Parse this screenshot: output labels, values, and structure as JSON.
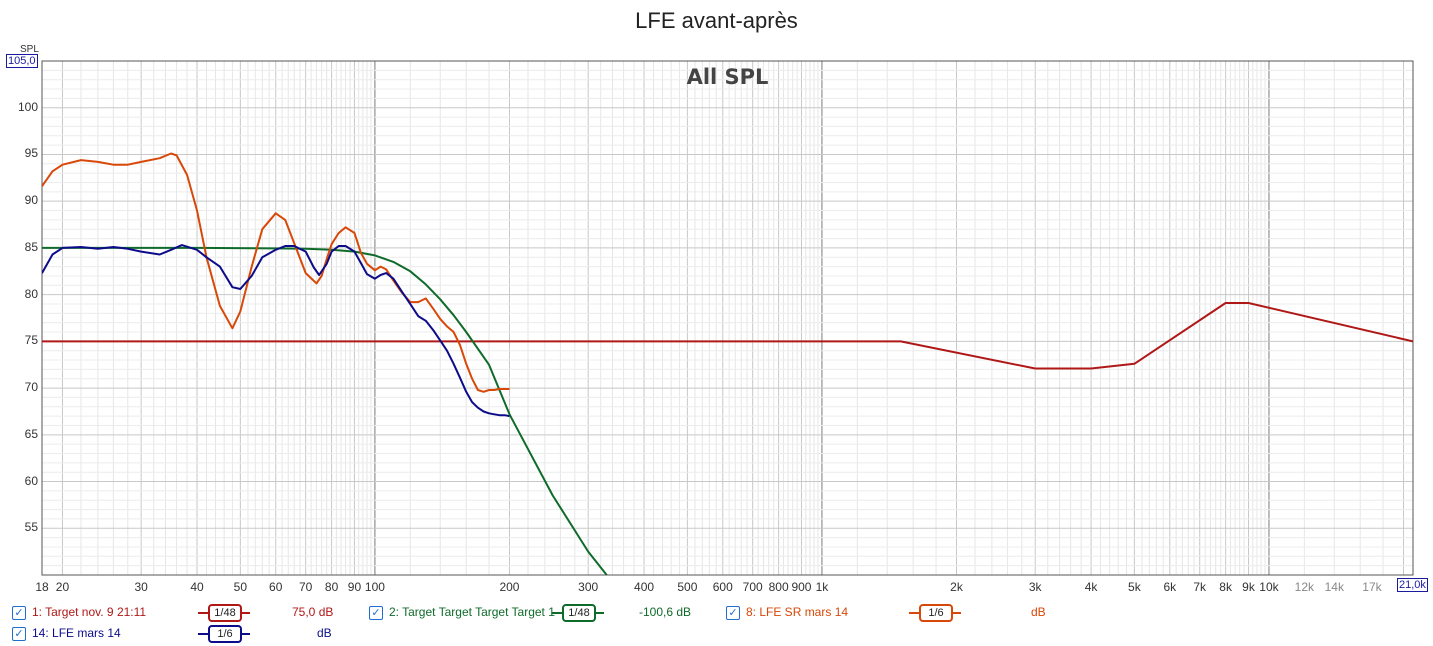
{
  "title": "LFE avant-après",
  "chart_data": {
    "type": "line",
    "title": "LFE avant-après",
    "subtitle": "All SPL",
    "ylabel": "SPL",
    "xscale": "log",
    "xlim": [
      18,
      21000
    ],
    "ylim": [
      50,
      105
    ],
    "grid": true,
    "y_ticks": [
      "100",
      "95",
      "90",
      "85",
      "80",
      "75",
      "70",
      "65",
      "60",
      "55"
    ],
    "y_top_label": "105,0",
    "x_ticks": [
      {
        "v": 18,
        "t": "18"
      },
      {
        "v": 20,
        "t": "20"
      },
      {
        "v": 30,
        "t": "30"
      },
      {
        "v": 40,
        "t": "40"
      },
      {
        "v": 50,
        "t": "50"
      },
      {
        "v": 60,
        "t": "60"
      },
      {
        "v": 70,
        "t": "70"
      },
      {
        "v": 80,
        "t": "80"
      },
      {
        "v": 90,
        "t": "90"
      },
      {
        "v": 100,
        "t": "100"
      },
      {
        "v": 200,
        "t": "200"
      },
      {
        "v": 300,
        "t": "300"
      },
      {
        "v": 400,
        "t": "400"
      },
      {
        "v": 500,
        "t": "500"
      },
      {
        "v": 600,
        "t": "600"
      },
      {
        "v": 700,
        "t": "700"
      },
      {
        "v": 800,
        "t": "800"
      },
      {
        "v": 900,
        "t": "900"
      },
      {
        "v": 1000,
        "t": "1k"
      },
      {
        "v": 2000,
        "t": "2k"
      },
      {
        "v": 3000,
        "t": "3k"
      },
      {
        "v": 4000,
        "t": "4k"
      },
      {
        "v": 5000,
        "t": "5k"
      },
      {
        "v": 6000,
        "t": "6k"
      },
      {
        "v": 7000,
        "t": "7k"
      },
      {
        "v": 8000,
        "t": "8k"
      },
      {
        "v": 9000,
        "t": "9k"
      },
      {
        "v": 10000,
        "t": "10k"
      },
      {
        "v": 12000,
        "t": "12k",
        "minor": true
      },
      {
        "v": 14000,
        "t": "14k",
        "minor": true
      },
      {
        "v": 17000,
        "t": "17k",
        "minor": true
      }
    ],
    "x_right_label": "21,0k",
    "series": [
      {
        "name": "1: Target nov. 9 21:11",
        "color": "#b01818",
        "smoothing": "1/48",
        "value": "75,0 dB",
        "x": [
          18,
          1500,
          3000,
          4000,
          5000,
          8000,
          9000,
          21000
        ],
        "y": [
          75,
          75,
          72.1,
          72.1,
          72.6,
          79.1,
          79.1,
          75
        ]
      },
      {
        "name": "2: Target Target Target Target 1",
        "color": "#0f6b2a",
        "smoothing": "1/48",
        "value": "-100,6 dB",
        "x": [
          18,
          40,
          60,
          70,
          80,
          90,
          100,
          110,
          120,
          130,
          140,
          150,
          160,
          180,
          200,
          250,
          300,
          330
        ],
        "y": [
          85,
          85,
          84.95,
          84.9,
          84.8,
          84.6,
          84.2,
          83.5,
          82.5,
          81.1,
          79.5,
          77.8,
          76,
          72.5,
          67.2,
          58.5,
          52.5,
          50
        ]
      },
      {
        "name": "8: LFE SR mars 14",
        "color": "#d84808",
        "smoothing": "1/6",
        "value": "dB",
        "x": [
          18,
          19,
          20,
          22,
          24,
          26,
          28,
          30,
          33,
          35,
          36,
          38,
          40,
          42,
          45,
          48,
          50,
          53,
          56,
          60,
          63,
          66,
          70,
          74,
          76,
          78,
          80,
          83,
          86,
          90,
          93,
          96,
          100,
          103,
          106,
          110,
          115,
          120,
          125,
          130,
          135,
          140,
          145,
          150,
          155,
          160,
          165,
          170,
          175,
          180,
          185,
          190,
          195,
          200
        ],
        "y": [
          91.6,
          93.2,
          93.9,
          94.4,
          94.2,
          93.9,
          93.9,
          94.2,
          94.6,
          95.1,
          94.9,
          92.8,
          89,
          84,
          78.8,
          76.4,
          78.2,
          83,
          87,
          88.7,
          88,
          85.5,
          82.3,
          81.2,
          82,
          83.8,
          85.4,
          86.6,
          87.2,
          86.6,
          84.5,
          83.3,
          82.6,
          83,
          82.7,
          81.5,
          80.2,
          79.2,
          79.2,
          79.6,
          78.5,
          77.4,
          76.6,
          76,
          74.6,
          72.6,
          71,
          69.8,
          69.6,
          69.8,
          69.8,
          69.9,
          69.9,
          69.9
        ]
      },
      {
        "name": "14: LFE mars 14",
        "color": "#0c0c8a",
        "smoothing": "1/6",
        "value": "dB",
        "x": [
          18,
          19,
          20,
          22,
          24,
          26,
          28,
          30,
          33,
          35,
          37,
          40,
          42,
          45,
          48,
          50,
          53,
          56,
          60,
          63,
          66,
          70,
          73,
          75,
          78,
          80,
          83,
          86,
          90,
          93,
          96,
          100,
          103,
          106,
          110,
          115,
          120,
          125,
          130,
          135,
          140,
          145,
          150,
          155,
          160,
          165,
          170,
          175,
          180,
          185,
          190,
          195,
          200
        ],
        "y": [
          82.3,
          84.3,
          85,
          85.1,
          84.9,
          85.1,
          84.9,
          84.6,
          84.3,
          84.8,
          85.3,
          84.8,
          84,
          83,
          80.8,
          80.6,
          82,
          84,
          84.8,
          85.2,
          85.2,
          84.6,
          82.9,
          82.1,
          83.3,
          84.6,
          85.2,
          85.2,
          84.6,
          83.4,
          82.2,
          81.7,
          82.1,
          82.3,
          81.7,
          80.3,
          79,
          77.7,
          77.2,
          76.2,
          75.1,
          74,
          72.6,
          71.1,
          69.6,
          68.5,
          67.9,
          67.5,
          67.3,
          67.2,
          67.1,
          67.1,
          67
        ]
      }
    ]
  }
}
